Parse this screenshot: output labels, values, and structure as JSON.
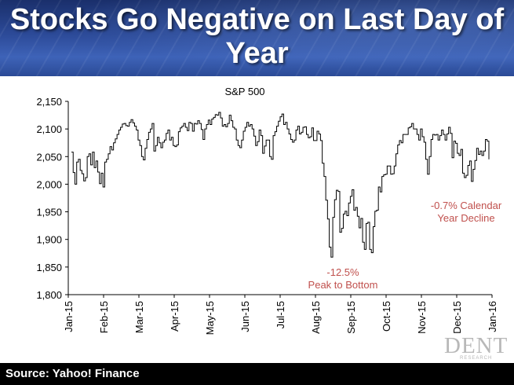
{
  "title": "Stocks Go Negative on Last Day of Year",
  "source": "Source: Yahoo! Finance",
  "logo": {
    "main": "DENT",
    "sub": "RESEARCH"
  },
  "chart_data": {
    "type": "line",
    "title": "S&P 500",
    "xlabel": "",
    "ylabel": "",
    "ylim": [
      1800,
      2150
    ],
    "yticks": [
      "2,150",
      "2,100",
      "2,050",
      "2,000",
      "1,950",
      "1,900",
      "1,850",
      "1,800"
    ],
    "xticks": [
      "Jan-15",
      "Feb-15",
      "Mar-15",
      "Apr-15",
      "May-15",
      "Jun-15",
      "Jul-15",
      "Aug-15",
      "Sep-15",
      "Oct-15",
      "Nov-15",
      "Dec-15",
      "Jan-16"
    ],
    "grid": false,
    "series": [
      {
        "values": [
          2058,
          2021,
          2000,
          2040,
          2045,
          2025,
          2019,
          2006,
          2012,
          2050,
          2055,
          2035,
          2058,
          2030,
          2042,
          2022,
          2001,
          2020,
          1995,
          2040,
          2045,
          2055,
          2068,
          2062,
          2075,
          2082,
          2090,
          2098,
          2103,
          2109,
          2110,
          2106,
          2105,
          2112,
          2117,
          2111,
          2105,
          2098,
          2080,
          2070,
          2050,
          2044,
          2065,
          2081,
          2094,
          2100,
          2110,
          2060,
          2070,
          2085,
          2075,
          2066,
          2076,
          2080,
          2092,
          2098,
          2080,
          2085,
          2070,
          2068,
          2071,
          2095,
          2102,
          2105,
          2110,
          2103,
          2097,
          2112,
          2110,
          2096,
          2110,
          2109,
          2115,
          2110,
          2099,
          2081,
          2100,
          2108,
          2116,
          2108,
          2118,
          2121,
          2126,
          2125,
          2130,
          2120,
          2105,
          2108,
          2104,
          2110,
          2125,
          2115,
          2103,
          2100,
          2080,
          2070,
          2066,
          2080,
          2096,
          2103,
          2112,
          2105,
          2108,
          2100,
          2087,
          2070,
          2077,
          2098,
          2088,
          2056,
          2069,
          2080,
          2080,
          2050,
          2045,
          2088,
          2095,
          2105,
          2114,
          2122,
          2127,
          2108,
          2112,
          2100,
          2091,
          2081,
          2076,
          2080,
          2098,
          2105,
          2091,
          2094,
          2103,
          2104,
          2090,
          2084,
          2086,
          2102,
          2079,
          2079,
          2096,
          2091,
          2079,
          2038,
          2014,
          1971,
          1937,
          1886,
          1868,
          1940,
          1972,
          1989,
          1987,
          1913,
          1920,
          1946,
          1951,
          1943,
          1966,
          1978,
          1990,
          1953,
          1958,
          1942,
          1921,
          1938,
          1895,
          1882,
          1929,
          1931,
          1882,
          1876,
          1923,
          1951,
          1953,
          1995,
          1986,
          2014,
          2017,
          2018,
          2033,
          2033,
          2018,
          2019,
          2033,
          2055,
          2071,
          2079,
          2075,
          2090,
          2090,
          2090,
          2102,
          2104,
          2110,
          2100,
          2100,
          2090,
          2080,
          2100,
          2086,
          2076,
          2045,
          2018,
          2050,
          2081,
          2090,
          2089,
          2090,
          2080,
          2088,
          2098,
          2090,
          2080,
          2091,
          2103,
          2092,
          2048,
          2078,
          2074,
          2056,
          2052,
          2063,
          2020,
          2012,
          2016,
          2034,
          2042,
          2005,
          2027,
          2043,
          2065,
          2054,
          2060,
          2052,
          2060,
          2081,
          2078,
          2045
        ]
      }
    ],
    "annotations": [
      {
        "text_lines": [
          "-12.5%",
          "Peak to Bottom"
        ],
        "color": "#c0504d"
      },
      {
        "text_lines": [
          "-0.7% Calendar",
          "Year Decline"
        ],
        "color": "#c0504d"
      }
    ]
  }
}
